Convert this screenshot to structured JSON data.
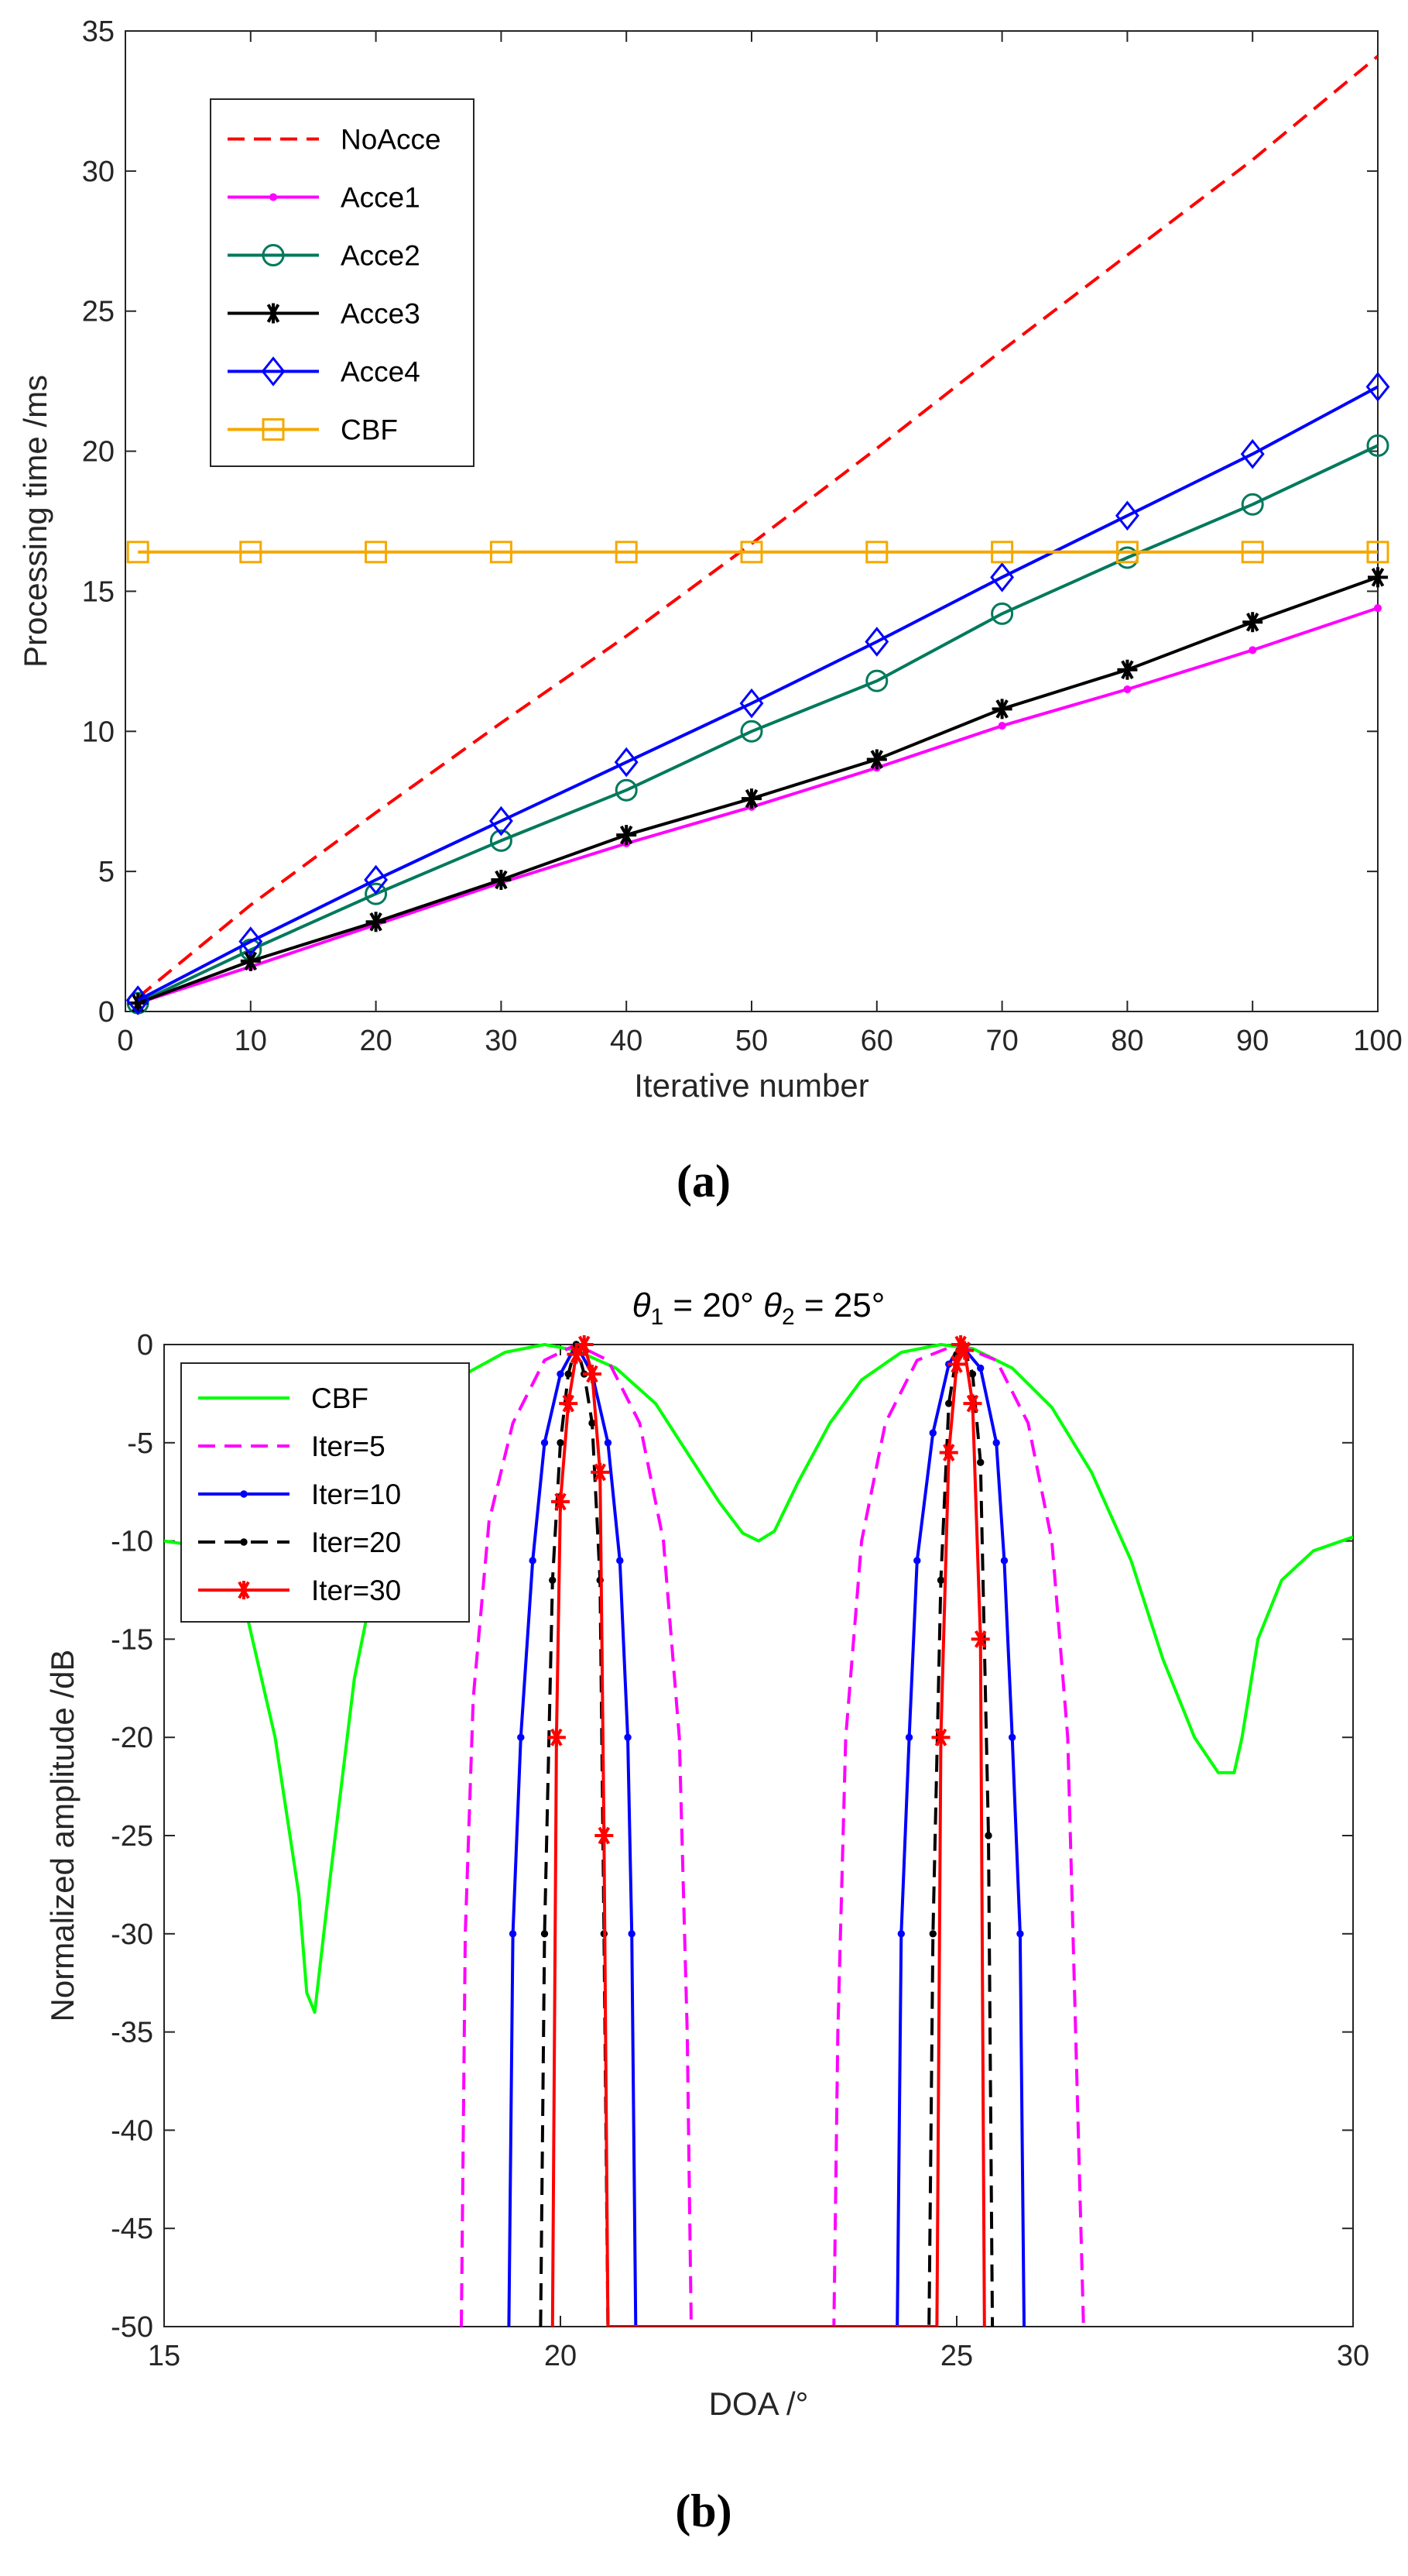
{
  "panel_labels": [
    "(a)",
    "(b)"
  ],
  "chart_data": [
    {
      "type": "line",
      "title": "",
      "xlabel": "Iterative number",
      "ylabel": "Processing time /ms",
      "xlim": [
        0,
        100
      ],
      "ylim": [
        0,
        35
      ],
      "xticks": [
        0,
        10,
        20,
        30,
        40,
        50,
        60,
        70,
        80,
        90,
        100
      ],
      "yticks": [
        0,
        5,
        10,
        15,
        20,
        25,
        30,
        35
      ],
      "grid": false,
      "legend_position": "top-left",
      "series": [
        {
          "name": "NoAcce",
          "color": "#ff0000",
          "dash": "dashed",
          "marker": "none",
          "x": [
            1,
            10,
            20,
            30,
            40,
            50,
            60,
            70,
            80,
            90,
            100
          ],
          "y": [
            0.5,
            3.8,
            7.1,
            10.3,
            13.4,
            16.7,
            20.1,
            23.6,
            27.0,
            30.4,
            34.1
          ]
        },
        {
          "name": "Acce1",
          "color": "#ff00ff",
          "dash": "solid",
          "marker": "dot",
          "x": [
            1,
            10,
            20,
            30,
            40,
            50,
            60,
            70,
            80,
            90,
            100
          ],
          "y": [
            0.3,
            1.6,
            3.1,
            4.6,
            6.0,
            7.3,
            8.7,
            10.2,
            11.5,
            12.9,
            14.4
          ]
        },
        {
          "name": "Acce2",
          "color": "#00795c",
          "dash": "solid",
          "marker": "circle",
          "x": [
            1,
            10,
            20,
            30,
            40,
            50,
            60,
            70,
            80,
            90,
            100
          ],
          "y": [
            0.3,
            2.2,
            4.2,
            6.1,
            7.9,
            10.0,
            11.8,
            14.2,
            16.2,
            18.1,
            20.2
          ]
        },
        {
          "name": "Acce3",
          "color": "#000000",
          "dash": "solid",
          "marker": "asterisk",
          "x": [
            1,
            10,
            20,
            30,
            40,
            50,
            60,
            70,
            80,
            90,
            100
          ],
          "y": [
            0.3,
            1.8,
            3.2,
            4.7,
            6.3,
            7.6,
            9.0,
            10.8,
            12.2,
            13.9,
            15.5
          ]
        },
        {
          "name": "Acce4",
          "color": "#0000ff",
          "dash": "solid",
          "marker": "diamond",
          "x": [
            1,
            10,
            20,
            30,
            40,
            50,
            60,
            70,
            80,
            90,
            100
          ],
          "y": [
            0.4,
            2.5,
            4.7,
            6.8,
            8.9,
            11.0,
            13.2,
            15.5,
            17.7,
            19.9,
            22.3
          ]
        },
        {
          "name": "CBF",
          "color": "#f5a800",
          "dash": "solid",
          "marker": "square",
          "x": [
            1,
            10,
            20,
            30,
            40,
            50,
            60,
            70,
            80,
            90,
            100
          ],
          "y": [
            16.4,
            16.4,
            16.4,
            16.4,
            16.4,
            16.4,
            16.4,
            16.4,
            16.4,
            16.4,
            16.4
          ]
        }
      ]
    },
    {
      "type": "line",
      "title": "θ1 = 20° θ2 = 25°",
      "title_parts": {
        "theta": "θ",
        "sub1": "1",
        "eq1": " = 20° ",
        "sub2": "2",
        "eq2": " = 25°"
      },
      "xlabel": "DOA /°",
      "ylabel": "Normalized amplitude /dB",
      "xlim": [
        15,
        30
      ],
      "ylim": [
        -50,
        0
      ],
      "xticks": [
        15,
        20,
        25,
        30
      ],
      "yticks": [
        0,
        -5,
        -10,
        -15,
        -20,
        -25,
        -30,
        -35,
        -40,
        -45,
        -50
      ],
      "grid": false,
      "legend_position": "top-left",
      "series": [
        {
          "name": "CBF",
          "color": "#00ff00",
          "dash": "solid",
          "marker": "none",
          "x": [
            15,
            15.5,
            16.0,
            16.4,
            16.7,
            16.8,
            16.9,
            17.1,
            17.4,
            17.8,
            18.3,
            18.8,
            19.3,
            19.8,
            20.2,
            20.7,
            21.2,
            21.6,
            22.0,
            22.3,
            22.5,
            22.7,
            23.0,
            23.4,
            23.8,
            24.3,
            24.8,
            25.2,
            25.7,
            26.2,
            26.7,
            27.2,
            27.6,
            28.0,
            28.3,
            28.5,
            28.6,
            28.8,
            29.1,
            29.5,
            30
          ],
          "y": [
            -10,
            -10.3,
            -13,
            -20,
            -28,
            -33,
            -34,
            -27,
            -17,
            -9,
            -4,
            -1.5,
            -0.4,
            0,
            -0.3,
            -1.2,
            -3,
            -5.5,
            -8,
            -9.6,
            -10,
            -9.5,
            -7,
            -4,
            -1.8,
            -0.4,
            0,
            -0.2,
            -1.2,
            -3.2,
            -6.5,
            -11,
            -16,
            -20,
            -21.8,
            -21.8,
            -20,
            -15,
            -12,
            -10.5,
            -9.8
          ]
        },
        {
          "name": "Iter=5",
          "color": "#ff00ff",
          "dash": "dashed",
          "marker": "none",
          "x": [
            18.75,
            18.8,
            18.9,
            19.1,
            19.4,
            19.8,
            20.2,
            20.6,
            21.0,
            21.3,
            21.5,
            21.6,
            21.65,
            23.45,
            23.5,
            23.6,
            23.8,
            24.1,
            24.5,
            25.0,
            25.5,
            25.9,
            26.2,
            26.4,
            26.5,
            26.6
          ],
          "y": [
            -50,
            -30,
            -18,
            -9,
            -4,
            -0.8,
            0,
            -0.8,
            -4,
            -10,
            -20,
            -35,
            -50,
            -50,
            -35,
            -20,
            -10,
            -4,
            -0.8,
            0,
            -0.8,
            -4,
            -10,
            -20,
            -35,
            -50
          ]
        },
        {
          "name": "Iter=10",
          "color": "#0000ff",
          "dash": "solid",
          "marker": "dot",
          "x": [
            19.35,
            19.4,
            19.5,
            19.65,
            19.8,
            20.0,
            20.2,
            20.4,
            20.6,
            20.75,
            20.85,
            20.9,
            20.95,
            24.25,
            24.3,
            24.4,
            24.5,
            24.7,
            24.9,
            25.05,
            25.3,
            25.5,
            25.6,
            25.7,
            25.8,
            25.85
          ],
          "y": [
            -50,
            -30,
            -20,
            -11,
            -5,
            -1.5,
            0,
            -1.5,
            -5,
            -11,
            -20,
            -30,
            -50,
            -50,
            -30,
            -20,
            -11,
            -4.5,
            -1,
            0,
            -1.2,
            -5,
            -11,
            -20,
            -30,
            -50
          ]
        },
        {
          "name": "Iter=20",
          "color": "#000000",
          "dash": "dashed",
          "marker": "dot",
          "x": [
            19.75,
            19.8,
            19.9,
            20.0,
            20.1,
            20.2,
            20.3,
            20.4,
            20.5,
            20.55,
            20.6,
            24.65,
            24.7,
            24.8,
            24.9,
            25.0,
            25.1,
            25.2,
            25.3,
            25.4,
            25.45
          ],
          "y": [
            -50,
            -30,
            -12,
            -5,
            -1.5,
            0,
            -1.5,
            -4,
            -12,
            -30,
            -50,
            -50,
            -30,
            -12,
            -3,
            -0.5,
            -0.3,
            -1.5,
            -6,
            -25,
            -50
          ]
        },
        {
          "name": "Iter=30",
          "color": "#ff0000",
          "dash": "solid",
          "marker": "asterisk",
          "x": [
            19.9,
            19.95,
            20.0,
            20.1,
            20.2,
            20.3,
            20.4,
            20.5,
            20.55,
            20.6,
            24.75,
            24.8,
            24.9,
            25.0,
            25.05,
            25.1,
            25.2,
            25.3,
            25.35
          ],
          "y": [
            -50,
            -20,
            -8,
            -3,
            -0.5,
            0,
            -1.5,
            -6.5,
            -25,
            -50,
            -50,
            -20,
            -5.5,
            -1,
            0,
            -0.3,
            -3,
            -15,
            -50
          ]
        }
      ]
    }
  ]
}
